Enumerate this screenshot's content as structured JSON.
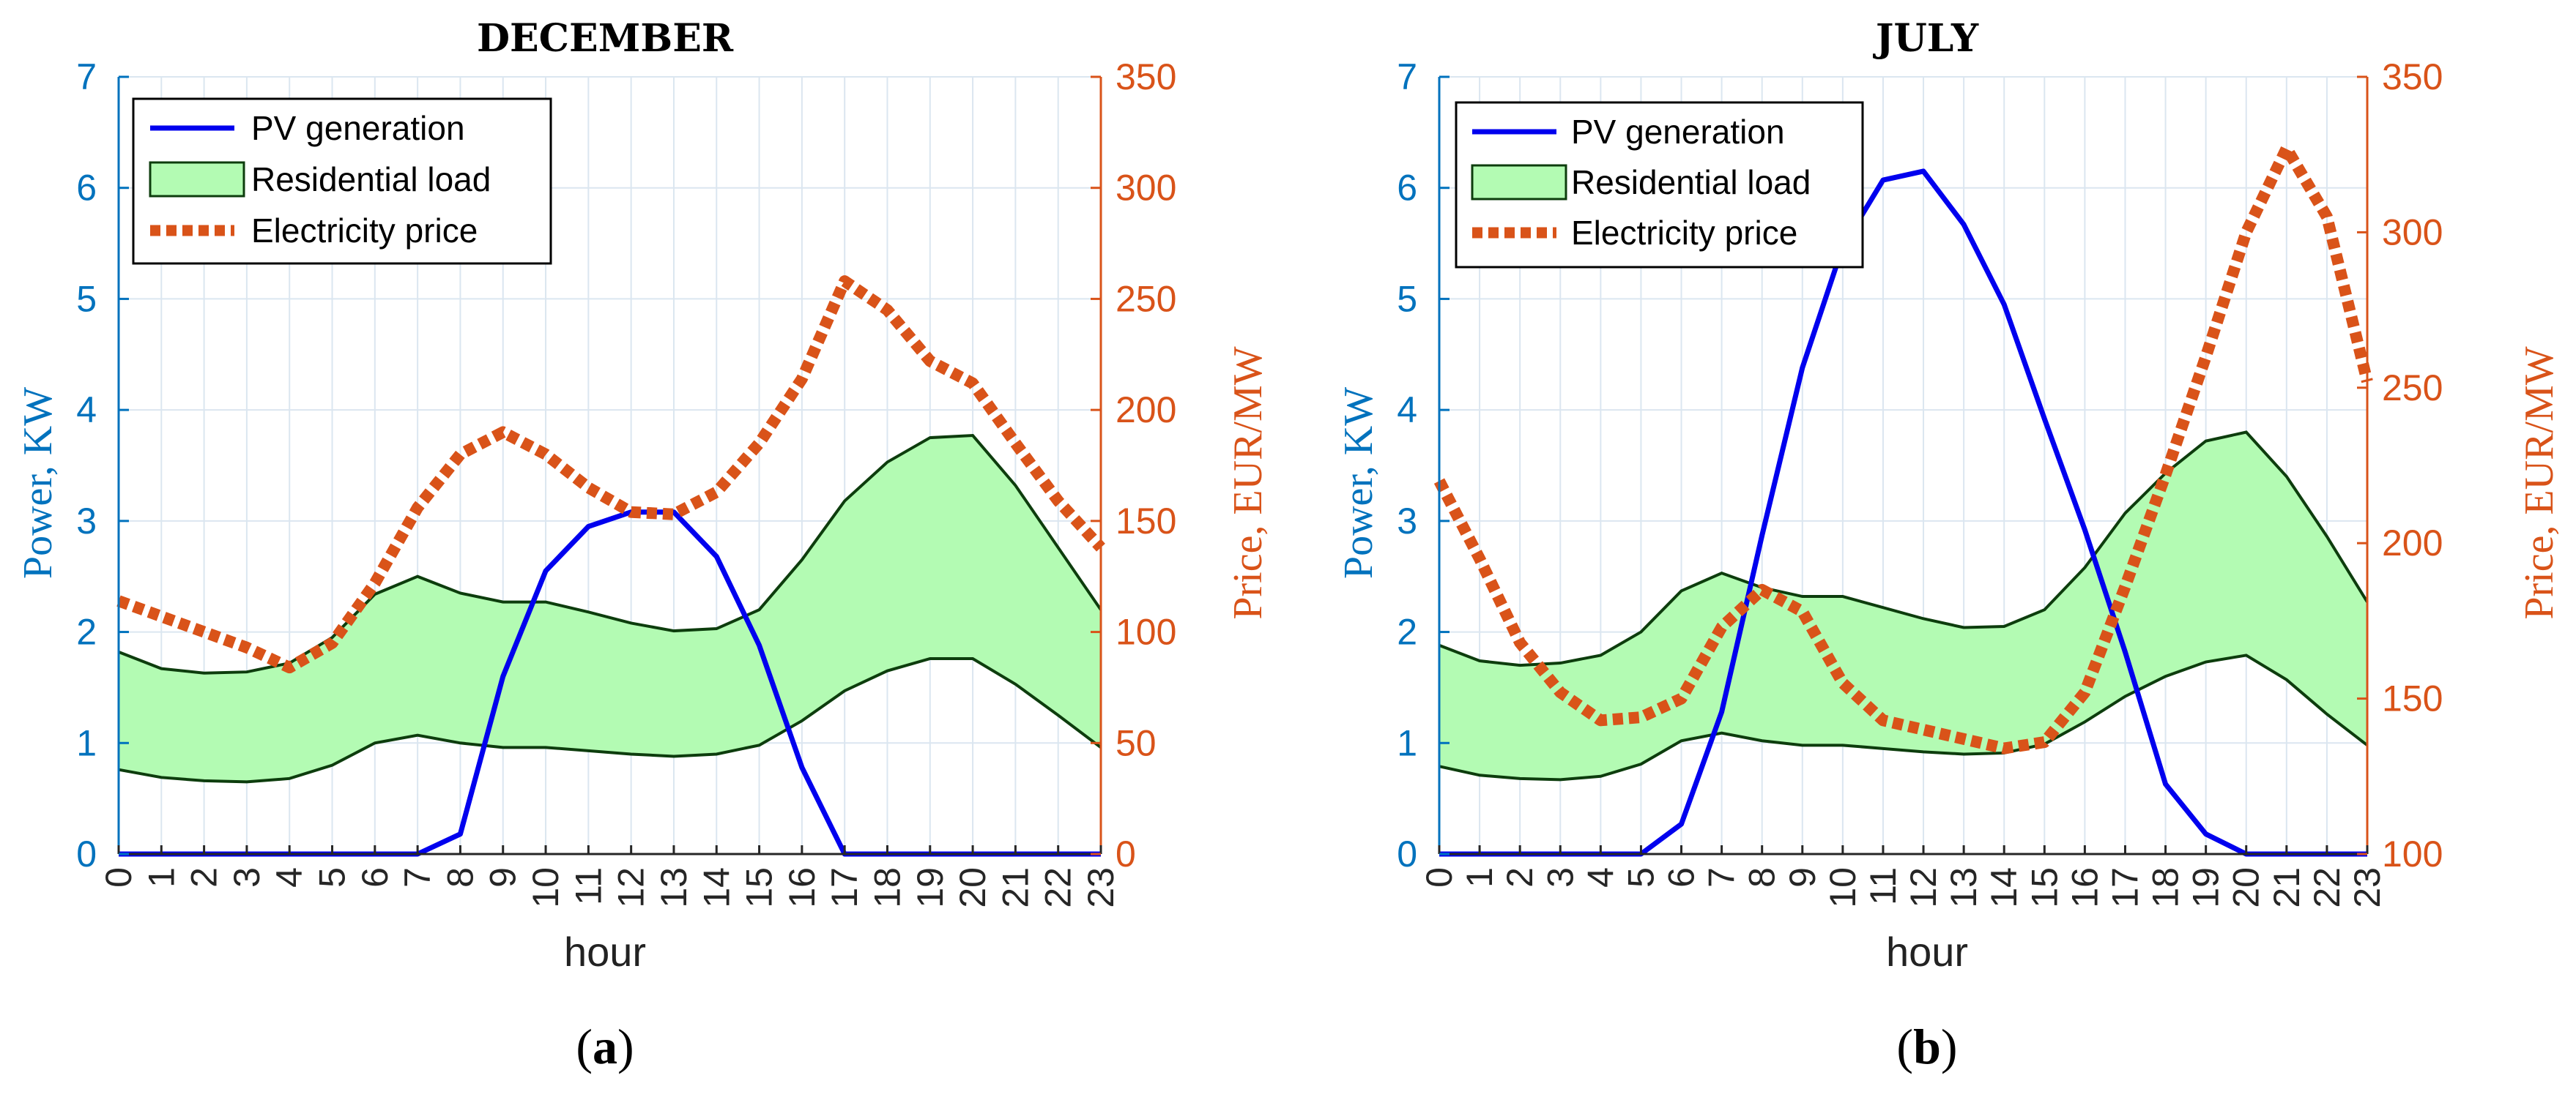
{
  "colors": {
    "pv": "#0000ee",
    "load_fill": "#b3fbb3",
    "load_edge": "#0d3d0d",
    "price": "#d95319",
    "left_axis": "#0072bd",
    "right_axis": "#d95319",
    "grid": "#dbe6f0"
  },
  "xlabel": "hour",
  "ylabel_left": "Power, KW",
  "ylabel_right": "Price, EUR/MW",
  "legend": [
    "PV generation",
    "Residential load",
    "Electricity price"
  ],
  "chart_data": [
    {
      "type": "line",
      "id": "a",
      "title": "DECEMBER",
      "caption_open": "(",
      "caption_letter": "a",
      "caption_close": ")",
      "x": [
        0,
        1,
        2,
        3,
        4,
        5,
        6,
        7,
        8,
        9,
        10,
        11,
        12,
        13,
        14,
        15,
        16,
        17,
        18,
        19,
        20,
        21,
        22,
        23
      ],
      "xlim": [
        0,
        23
      ],
      "ylim_left": [
        0,
        7
      ],
      "yticks_left": [
        0,
        1,
        2,
        3,
        4,
        5,
        6,
        7
      ],
      "ylim_right": [
        0,
        350
      ],
      "yticks_right": [
        0,
        50,
        100,
        150,
        200,
        250,
        300,
        350
      ],
      "series": [
        {
          "name": "PV generation",
          "axis": "left",
          "values": [
            0,
            0,
            0,
            0,
            0,
            0,
            0,
            0,
            0.18,
            1.6,
            2.55,
            2.95,
            3.08,
            3.08,
            2.68,
            1.88,
            0.78,
            0,
            0,
            0,
            0,
            0,
            0,
            0
          ]
        },
        {
          "name": "Residential load upper",
          "axis": "left",
          "values": [
            1.82,
            1.67,
            1.63,
            1.64,
            1.72,
            1.95,
            2.34,
            2.5,
            2.35,
            2.27,
            2.27,
            2.18,
            2.08,
            2.01,
            2.03,
            2.2,
            2.65,
            3.18,
            3.53,
            3.75,
            3.77,
            3.32,
            2.76,
            2.2
          ]
        },
        {
          "name": "Residential load lower",
          "axis": "left",
          "values": [
            0.76,
            0.69,
            0.66,
            0.65,
            0.68,
            0.8,
            1.0,
            1.07,
            1.0,
            0.96,
            0.96,
            0.93,
            0.9,
            0.88,
            0.9,
            0.98,
            1.2,
            1.47,
            1.65,
            1.76,
            1.76,
            1.53,
            1.25,
            0.96
          ]
        },
        {
          "name": "Electricity price",
          "axis": "right",
          "values": [
            114,
            107,
            100,
            93,
            84,
            95,
            122,
            156,
            180,
            190,
            180,
            165,
            154,
            153,
            163,
            185,
            214,
            258,
            245,
            222,
            212,
            185,
            159,
            138
          ]
        }
      ]
    },
    {
      "type": "line",
      "id": "b",
      "title": "JULY",
      "caption_open": "(",
      "caption_letter": "b",
      "caption_close": ")",
      "x": [
        0,
        1,
        2,
        3,
        4,
        5,
        6,
        7,
        8,
        9,
        10,
        11,
        12,
        13,
        14,
        15,
        16,
        17,
        18,
        19,
        20,
        21,
        22,
        23
      ],
      "xlim": [
        0,
        23
      ],
      "ylim_left": [
        0,
        7
      ],
      "yticks_left": [
        0,
        1,
        2,
        3,
        4,
        5,
        6,
        7
      ],
      "ylim_right": [
        100,
        350
      ],
      "yticks_right": [
        100,
        150,
        200,
        250,
        300,
        350
      ],
      "series": [
        {
          "name": "PV generation",
          "axis": "left",
          "values": [
            0,
            0,
            0,
            0,
            0,
            0,
            0.27,
            1.28,
            2.87,
            4.38,
            5.47,
            6.07,
            6.15,
            5.67,
            4.95,
            3.92,
            2.92,
            1.82,
            0.63,
            0.18,
            0,
            0,
            0,
            0
          ]
        },
        {
          "name": "Residential load upper",
          "axis": "left",
          "values": [
            1.88,
            1.74,
            1.7,
            1.72,
            1.79,
            2.0,
            2.37,
            2.53,
            2.4,
            2.32,
            2.32,
            2.22,
            2.12,
            2.04,
            2.05,
            2.2,
            2.58,
            3.07,
            3.43,
            3.72,
            3.8,
            3.4,
            2.86,
            2.27
          ]
        },
        {
          "name": "Residential load lower",
          "axis": "left",
          "values": [
            0.79,
            0.71,
            0.68,
            0.67,
            0.7,
            0.81,
            1.02,
            1.09,
            1.02,
            0.98,
            0.98,
            0.95,
            0.92,
            0.9,
            0.91,
            0.99,
            1.19,
            1.42,
            1.6,
            1.73,
            1.79,
            1.57,
            1.26,
            0.98
          ]
        },
        {
          "name": "Electricity price",
          "axis": "right",
          "values": [
            220,
            195,
            168,
            152,
            143,
            144,
            150,
            173,
            185,
            178,
            155,
            143,
            140,
            137,
            134,
            136,
            152,
            186,
            222,
            260,
            300,
            327,
            305,
            252
          ]
        }
      ]
    }
  ]
}
